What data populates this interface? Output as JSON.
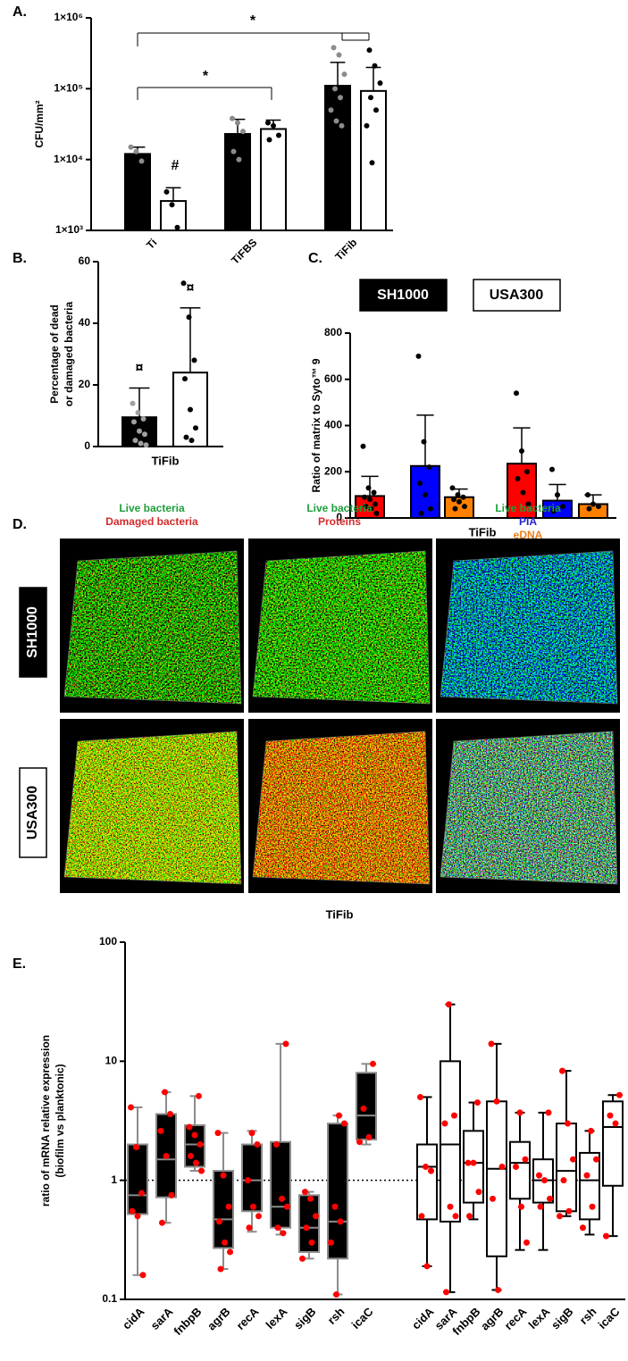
{
  "chart_data": [
    {
      "type": "bar",
      "label": "A.",
      "ylabel": "CFU/mm²",
      "log_y": true,
      "ylim": [
        1000,
        1000000
      ],
      "yticks": [
        {
          "value": 1000,
          "label": "1×10³"
        },
        {
          "value": 10000,
          "label": "1×10⁴"
        },
        {
          "value": 100000,
          "label": "1×10⁵"
        },
        {
          "value": 1000000,
          "label": "1×10⁶"
        }
      ],
      "categories": [
        "Ti",
        "TiFBS",
        "TiFib"
      ],
      "series": [
        {
          "color": "#000000",
          "point_color": "#8c8c8c",
          "values": [
            12000,
            23000,
            110000
          ],
          "errors": [
            3000,
            14000,
            125000
          ],
          "points": [
            [
              15000,
              13000,
              9500
            ],
            [
              38000,
              33000,
              25000,
              13000,
              10000
            ],
            [
              380000,
              300000,
              160000,
              100000,
              75000,
              50000,
              35000,
              30000
            ]
          ]
        },
        {
          "color": "#ffffff",
          "point_color": "#000000",
          "values": [
            2600,
            27000,
            93000
          ],
          "errors": [
            1400,
            9000,
            107000
          ],
          "points": [
            [
              3500,
              2300,
              1100
            ],
            [
              33000,
              30000,
              22000,
              19000
            ],
            [
              350000,
              210000,
              120000,
              75000,
              50000,
              30000,
              9000
            ]
          ]
        }
      ],
      "annotations": [
        "*",
        "*",
        "#"
      ]
    },
    {
      "type": "bar",
      "label": "B.",
      "ylabel": [
        "Percentage of dead",
        "or damaged bacteria"
      ],
      "xlabel": "TiFib",
      "ylim": [
        0,
        60
      ],
      "yticks": [
        0,
        20,
        40,
        60
      ],
      "series": [
        {
          "color": "#000000",
          "point_color": "#a0a0a0",
          "value": 9.5,
          "error": 9.5,
          "points": [
            14,
            11,
            9,
            8,
            5,
            4,
            2,
            1,
            0.5
          ],
          "marker": "¤"
        },
        {
          "color": "#ffffff",
          "point_color": "#000000",
          "value": 24,
          "error": 21,
          "points": [
            53,
            42,
            28,
            22,
            12,
            6,
            3,
            2
          ],
          "marker": "¤"
        }
      ]
    },
    {
      "type": "bar",
      "label": "C.",
      "ylabel": "Ratio of matrix to Syto™ 9",
      "xlabel": "TiFib",
      "ylim": [
        0,
        800
      ],
      "yticks": [
        0,
        200,
        400,
        600,
        800
      ],
      "groups": [
        "SH1000",
        "USA300"
      ],
      "group_colors": [
        "#000000",
        "#ffffff"
      ],
      "series": [
        {
          "color": "#ff0000",
          "point_color": "#000000",
          "values": [
            95,
            235
          ],
          "errors": [
            85,
            155
          ],
          "points": [
            [
              310,
              130,
              110,
              90,
              80,
              60,
              50,
              40,
              20
            ],
            [
              540,
              290,
              200,
              170,
              110,
              60
            ]
          ]
        },
        {
          "color": "#0000ff",
          "point_color": "#000000",
          "values": [
            225,
            75
          ],
          "errors": [
            220,
            70
          ],
          "points": [
            [
              700,
              330,
              220,
              150,
              100,
              40,
              20
            ],
            [
              210,
              100,
              50,
              30
            ]
          ]
        },
        {
          "color": "#ff8000",
          "point_color": "#000000",
          "values": [
            90,
            60
          ],
          "errors": [
            35,
            40
          ],
          "points": [
            [
              130,
              100,
              90,
              80,
              70,
              50,
              40
            ],
            [
              100,
              60,
              50,
              40
            ]
          ]
        }
      ]
    },
    {
      "type": "box",
      "label": "E.",
      "ylabel": [
        "ratio of mRNA relative expression",
        "(biofilm vs planktonic)"
      ],
      "log_y": true,
      "ylim": [
        0.1,
        100
      ],
      "yticks": [
        0.1,
        1,
        10,
        100
      ],
      "refline": 1,
      "categories": [
        "cidA",
        "sarA",
        "fnbpB",
        "agrB",
        "recA",
        "lexA",
        "sigB",
        "rsh",
        "icaC"
      ],
      "point_color": "#ff0000",
      "series": [
        {
          "color": "#000000",
          "line_color": "#8c8c8c",
          "boxes": [
            {
              "min": 0.16,
              "q1": 0.52,
              "median": 0.75,
              "q3": 2.0,
              "max": 4.1,
              "points": [
                4.1,
                1.9,
                0.78,
                0.55,
                0.5,
                0.16
              ]
            },
            {
              "min": 0.44,
              "q1": 0.72,
              "median": 1.5,
              "q3": 3.6,
              "max": 5.5,
              "points": [
                5.5,
                3.6,
                2.6,
                1.6,
                0.75,
                0.44
              ]
            },
            {
              "min": 1.2,
              "q1": 1.3,
              "median": 2.0,
              "q3": 2.9,
              "max": 5.1,
              "points": [
                5.1,
                2.8,
                2.4,
                2.0,
                1.6,
                1.4,
                1.2
              ]
            },
            {
              "min": 0.18,
              "q1": 0.27,
              "median": 0.47,
              "q3": 1.2,
              "max": 2.5,
              "points": [
                2.5,
                1.1,
                0.6,
                0.45,
                0.3,
                0.25,
                0.18
              ]
            },
            {
              "min": 0.37,
              "q1": 0.55,
              "median": 1.0,
              "q3": 2.0,
              "max": 2.6,
              "points": [
                2.5,
                2.0,
                1.0,
                0.6,
                0.5,
                0.4
              ]
            },
            {
              "min": 0.35,
              "q1": 0.4,
              "median": 0.6,
              "q3": 2.1,
              "max": 14,
              "points": [
                14,
                2.0,
                0.7,
                0.6,
                0.4,
                0.36
              ]
            },
            {
              "min": 0.22,
              "q1": 0.25,
              "median": 0.4,
              "q3": 0.75,
              "max": 0.8,
              "points": [
                0.8,
                0.7,
                0.5,
                0.4,
                0.3,
                0.22
              ]
            },
            {
              "min": 0.11,
              "q1": 0.22,
              "median": 0.45,
              "q3": 3.0,
              "max": 3.5,
              "points": [
                3.5,
                3.0,
                0.6,
                0.45,
                0.3,
                0.11
              ]
            },
            {
              "min": 2.0,
              "q1": 2.2,
              "median": 3.5,
              "q3": 8.0,
              "max": 9.5,
              "points": [
                9.5,
                4.0,
                2.3,
                2.1
              ]
            }
          ]
        },
        {
          "color": "#ffffff",
          "line_color": "#000000",
          "boxes": [
            {
              "min": 0.19,
              "q1": 0.47,
              "median": 1.3,
              "q3": 2.0,
              "max": 5.0,
              "points": [
                5.0,
                1.3,
                1.2,
                0.5,
                0.19
              ]
            },
            {
              "min": 0.115,
              "q1": 0.45,
              "median": 2.0,
              "q3": 10,
              "max": 30,
              "points": [
                30,
                3.5,
                3.0,
                0.6,
                0.5,
                0.115
              ]
            },
            {
              "min": 0.47,
              "q1": 0.65,
              "median": 1.4,
              "q3": 2.6,
              "max": 4.5,
              "points": [
                4.5,
                1.4,
                1.4,
                0.8,
                0.5
              ]
            },
            {
              "min": 0.12,
              "q1": 0.23,
              "median": 1.25,
              "q3": 4.6,
              "max": 14,
              "points": [
                14,
                4.6,
                1.3,
                0.7,
                0.12
              ]
            },
            {
              "min": 0.26,
              "q1": 0.7,
              "median": 1.4,
              "q3": 2.1,
              "max": 3.7,
              "points": [
                3.7,
                1.5,
                1.3,
                0.6,
                0.3
              ]
            },
            {
              "min": 0.26,
              "q1": 0.65,
              "median": 1.0,
              "q3": 1.5,
              "max": 3.7,
              "points": [
                3.7,
                1.1,
                1.0,
                0.7,
                0.6
              ]
            },
            {
              "min": 0.5,
              "q1": 0.55,
              "median": 1.2,
              "q3": 3.0,
              "max": 8.3,
              "points": [
                8.3,
                3.0,
                1.5,
                1.0,
                0.55,
                0.5
              ]
            },
            {
              "min": 0.35,
              "q1": 0.47,
              "median": 1.0,
              "q3": 1.7,
              "max": 2.6,
              "points": [
                2.6,
                1.5,
                1.1,
                0.6,
                0.4
              ]
            },
            {
              "min": 0.34,
              "q1": 0.9,
              "median": 2.8,
              "q3": 4.6,
              "max": 5.2,
              "points": [
                5.2,
                3.5,
                3.0,
                0.34
              ]
            }
          ]
        }
      ]
    }
  ],
  "microscopy": {
    "label": "D.",
    "columns": [
      [
        "Live bacteria",
        "Damaged bacteria"
      ],
      [
        "Live bacteria",
        "Proteins"
      ],
      [
        "Live bacteria",
        "PIA",
        "eDNA"
      ]
    ],
    "column_colors": [
      [
        "#1e9e3a",
        "#d42a2a"
      ],
      [
        "#1e9e3a",
        "#d42a2a"
      ],
      [
        "#1e9e3a",
        "#2020d0",
        "#e8801c"
      ]
    ],
    "rows": [
      "SH1000",
      "USA300"
    ],
    "row_colors": [
      "#000000",
      "#ffffff"
    ],
    "xlabel": "TiFib"
  }
}
